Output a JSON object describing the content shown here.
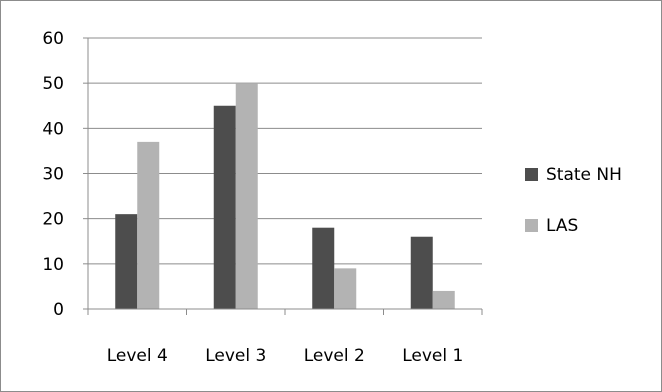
{
  "chart_data": {
    "type": "bar",
    "categories": [
      "Level 4",
      "Level 3",
      "Level 2",
      "Level 1"
    ],
    "series": [
      {
        "name": "State NH",
        "values": [
          21,
          45,
          18,
          16
        ],
        "color": "#4d4d4d"
      },
      {
        "name": "LAS",
        "values": [
          37,
          50,
          9,
          4
        ],
        "color": "#b3b3b3"
      }
    ],
    "y_ticks": [
      "0",
      "10",
      "20",
      "30",
      "40",
      "50",
      "60"
    ],
    "ylim": [
      0,
      60
    ],
    "grid": true,
    "legend_position": "right"
  }
}
